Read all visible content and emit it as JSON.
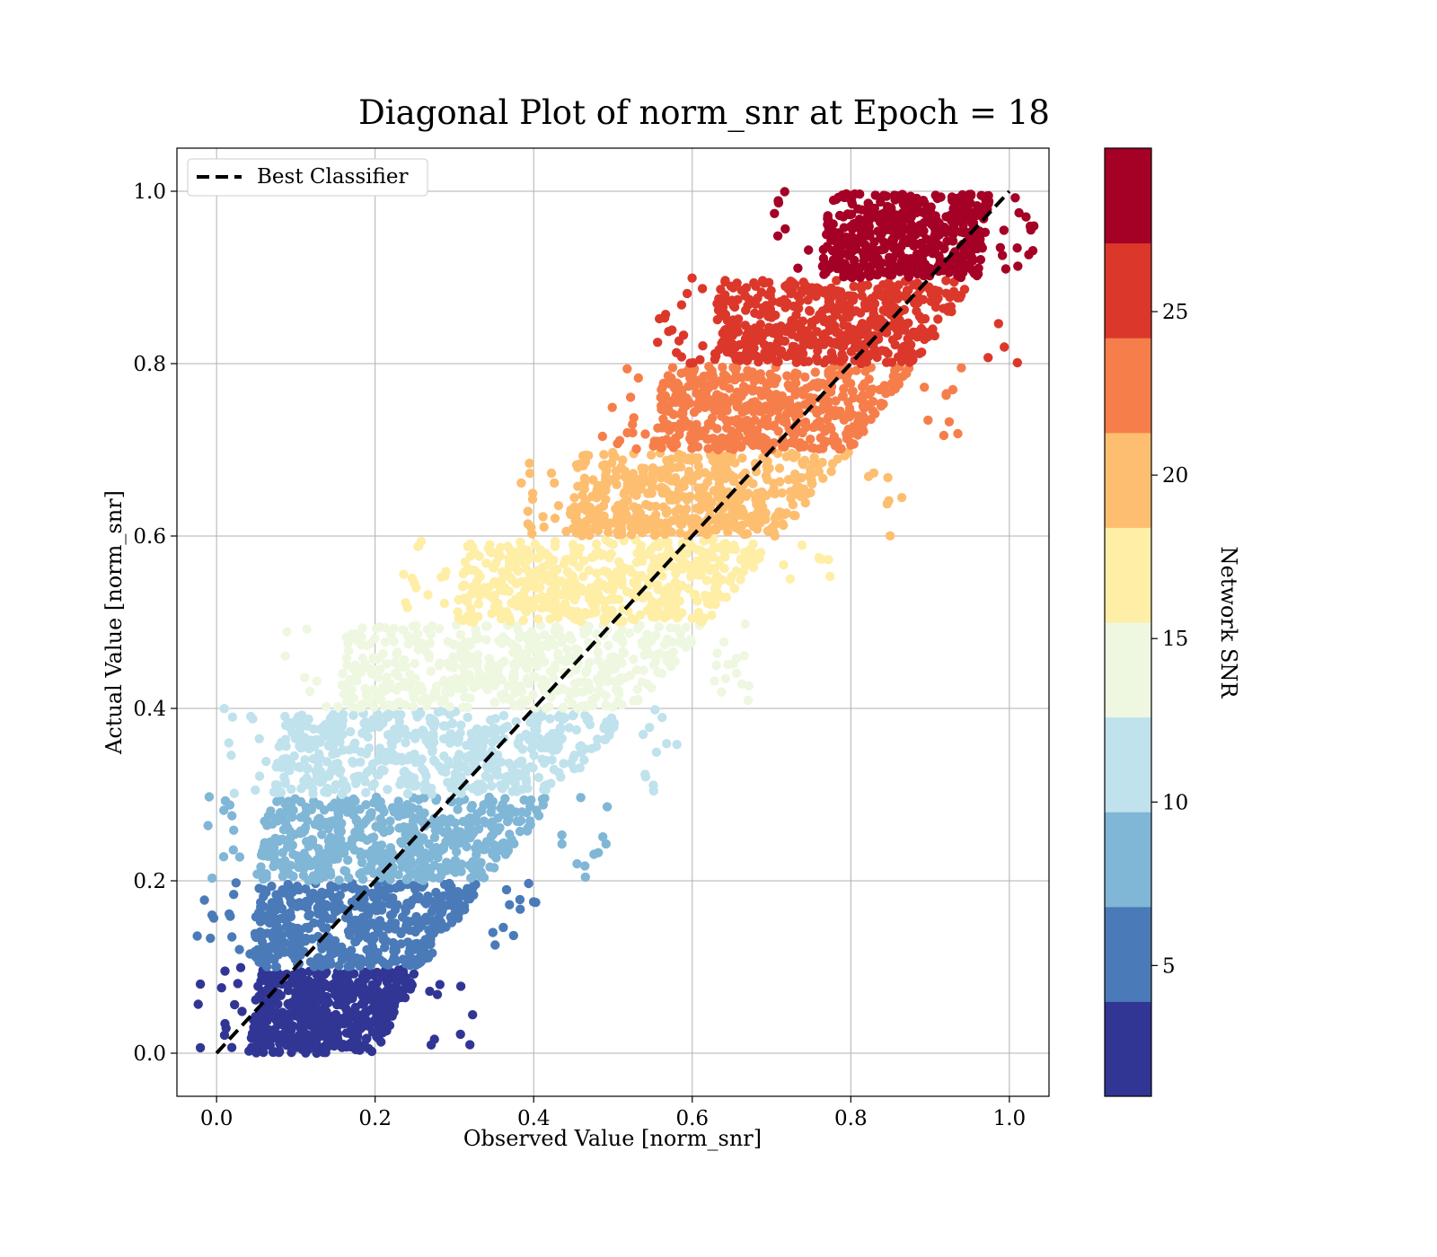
{
  "chart_data": {
    "type": "scatter",
    "title": "Diagonal Plot of norm_snr at Epoch = 18",
    "xlabel": "Observed Value [norm_snr]",
    "ylabel": "Actual Value [norm_snr]",
    "xlim": [
      -0.05,
      1.05
    ],
    "ylim": [
      -0.05,
      1.05
    ],
    "xticks": [
      "0.0",
      "0.2",
      "0.4",
      "0.6",
      "0.8",
      "1.0"
    ],
    "yticks": [
      "0.0",
      "0.2",
      "0.4",
      "0.6",
      "0.8",
      "1.0"
    ],
    "grid": true,
    "legend": {
      "placement": "top-left",
      "entries": [
        {
          "label": "Best Classifier",
          "style": "dashed",
          "color": "#000000"
        }
      ]
    },
    "reference_line": {
      "name": "Best Classifier",
      "x": [
        0.0,
        1.0
      ],
      "y": [
        0.0,
        1.0
      ]
    },
    "colorbar": {
      "label": "Network SNR",
      "range": [
        1,
        30
      ],
      "ticks": [
        "5",
        "10",
        "15",
        "20",
        "25"
      ],
      "tick_values": [
        5,
        10,
        15,
        20,
        25
      ],
      "colors": [
        "#313695",
        "#4575b4",
        "#74add1",
        "#abd9e9",
        "#e0f3f8",
        "#ffffbf",
        "#fee090",
        "#fdae61",
        "#f46d43",
        "#d73027",
        "#a50026"
      ]
    },
    "bands": [
      {
        "y": [
          0.0,
          0.1
        ],
        "color": "#313695",
        "x_left": 0.04,
        "x_right_top": 0.26,
        "x_right_bottom": 0.2
      },
      {
        "y": [
          0.1,
          0.2
        ],
        "color": "#4a7bb8",
        "x_left": 0.04,
        "x_right_top": 0.34,
        "x_right_bottom": 0.26
      },
      {
        "y": [
          0.2,
          0.3
        ],
        "color": "#80b6d6",
        "x_left": 0.05,
        "x_right_top": 0.43,
        "x_right_bottom": 0.34
      },
      {
        "y": [
          0.3,
          0.4
        ],
        "color": "#bfe2ed",
        "x_left": 0.07,
        "x_right_top": 0.53,
        "x_right_bottom": 0.43
      },
      {
        "y": [
          0.4,
          0.5
        ],
        "color": "#eef7e0",
        "x_left": 0.15,
        "x_right_top": 0.62,
        "x_right_bottom": 0.53
      },
      {
        "y": [
          0.5,
          0.6
        ],
        "color": "#feeea6",
        "x_left": 0.3,
        "x_right_top": 0.71,
        "x_right_bottom": 0.62
      },
      {
        "y": [
          0.6,
          0.7
        ],
        "color": "#fdbe70",
        "x_left": 0.44,
        "x_right_top": 0.8,
        "x_right_bottom": 0.71
      },
      {
        "y": [
          0.7,
          0.8
        ],
        "color": "#f67e4b",
        "x_left": 0.55,
        "x_right_top": 0.88,
        "x_right_bottom": 0.8
      },
      {
        "y": [
          0.8,
          0.9
        ],
        "color": "#db382b",
        "x_left": 0.62,
        "x_right_top": 0.96,
        "x_right_bottom": 0.88
      },
      {
        "y": [
          0.9,
          1.0
        ],
        "color": "#a50026",
        "x_left": 0.76,
        "x_right_top": 0.98,
        "x_right_bottom": 0.96
      }
    ],
    "colorbar_segments": [
      "#313695",
      "#4a7bb8",
      "#80b6d6",
      "#bfe2ed",
      "#eef7e0",
      "#feeea6",
      "#fdbe70",
      "#f67e4b",
      "#db382b",
      "#a50026"
    ]
  }
}
